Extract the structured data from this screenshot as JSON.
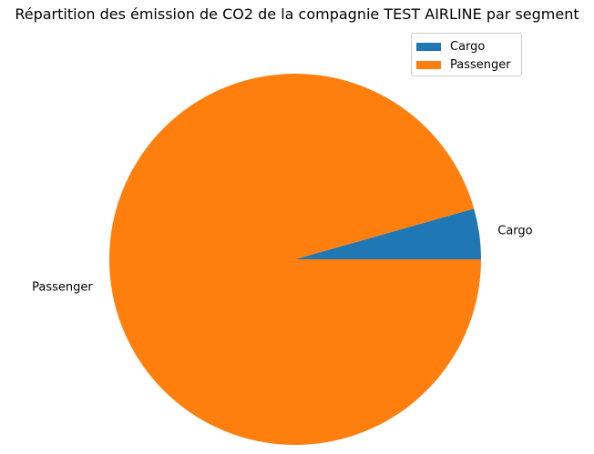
{
  "chart_data": {
    "type": "pie",
    "title": "Répartition des émission de CO2 de la compagnie TEST AIRLINE par segment",
    "categories": [
      "Cargo",
      "Passenger"
    ],
    "values": [
      4.4,
      95.6
    ],
    "colors": [
      "#1f77b4",
      "#ff7f0e"
    ],
    "legend": {
      "placement": "upper right",
      "entries": [
        "Cargo",
        "Passenger"
      ]
    }
  }
}
